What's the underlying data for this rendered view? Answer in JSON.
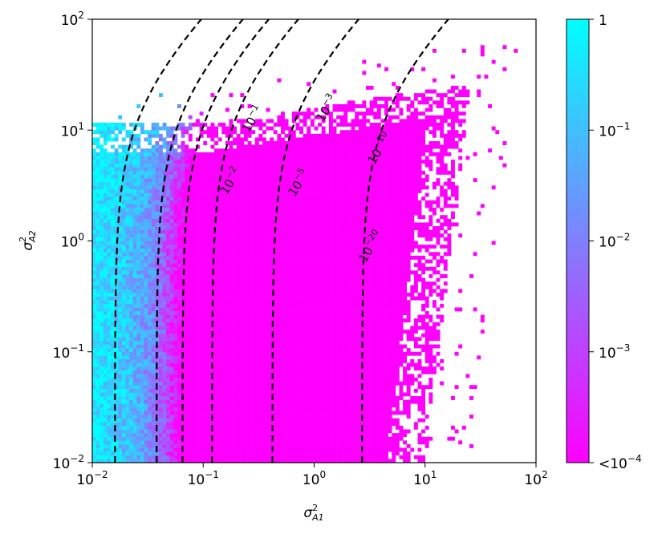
{
  "chart_data": {
    "type": "heatmap",
    "xlabel": "σ²A1",
    "ylabel": "σ²A2",
    "x_scale": "log",
    "y_scale": "log",
    "xlim": [
      0.01,
      100
    ],
    "ylim": [
      0.01,
      100
    ],
    "x_ticks": [
      {
        "value": 0.01,
        "base": "10",
        "exp": "−2"
      },
      {
        "value": 0.1,
        "base": "10",
        "exp": "−1"
      },
      {
        "value": 1,
        "base": "10",
        "exp": "0"
      },
      {
        "value": 10,
        "base": "10",
        "exp": "1"
      },
      {
        "value": 100,
        "base": "10",
        "exp": "2"
      }
    ],
    "y_ticks": [
      {
        "value": 0.01,
        "base": "10",
        "exp": "−2"
      },
      {
        "value": 0.1,
        "base": "10",
        "exp": "−1"
      },
      {
        "value": 1,
        "base": "10",
        "exp": "0"
      },
      {
        "value": 10,
        "base": "10",
        "exp": "1"
      },
      {
        "value": 100,
        "base": "10",
        "exp": "2"
      }
    ],
    "grid": false,
    "colorbar": {
      "scale": "log",
      "min": 0.0001,
      "max": 1,
      "colormap": "cool_reversed",
      "color_at_max": "#00ffff",
      "color_at_min": "#ff00ff",
      "ticks": [
        {
          "value": 1,
          "label": "1",
          "exp": ""
        },
        {
          "value": 0.1,
          "label": "10",
          "exp": "−1"
        },
        {
          "value": 0.01,
          "label": "10",
          "exp": "−2"
        },
        {
          "value": 0.001,
          "label": "10",
          "exp": "−3"
        },
        {
          "value": 0.0001,
          "label": "<10",
          "exp": "−4"
        }
      ]
    },
    "heatmap_bins": {
      "x_bins": 120,
      "y_bins": 120
    },
    "contours": [
      {
        "level": 0.1,
        "base": "10",
        "exp": "−1",
        "x_at_ymin": 0.016,
        "label_at": [
          0.3,
          12
        ]
      },
      {
        "level": 0.01,
        "base": "10",
        "exp": "−2",
        "x_at_ymin": 0.038,
        "label_at": [
          0.19,
          3.3
        ]
      },
      {
        "level": 0.001,
        "base": "10",
        "exp": "−3",
        "x_at_ymin": 0.065,
        "label_at": [
          1.4,
          15
        ]
      },
      {
        "level": 1e-05,
        "base": "10",
        "exp": "−5",
        "x_at_ymin": 0.12,
        "label_at": [
          0.78,
          3.2
        ]
      },
      {
        "level": 1e-10,
        "base": "10",
        "exp": "−10",
        "x_at_ymin": 0.42,
        "label_at": [
          4.2,
          6.5
        ]
      },
      {
        "level": 1e-20,
        "base": "10",
        "exp": "−20",
        "x_at_ymin": 2.7,
        "label_at": [
          3.5,
          0.85
        ]
      }
    ],
    "contour_style": {
      "color": "#000000",
      "dash": "dashed"
    }
  }
}
